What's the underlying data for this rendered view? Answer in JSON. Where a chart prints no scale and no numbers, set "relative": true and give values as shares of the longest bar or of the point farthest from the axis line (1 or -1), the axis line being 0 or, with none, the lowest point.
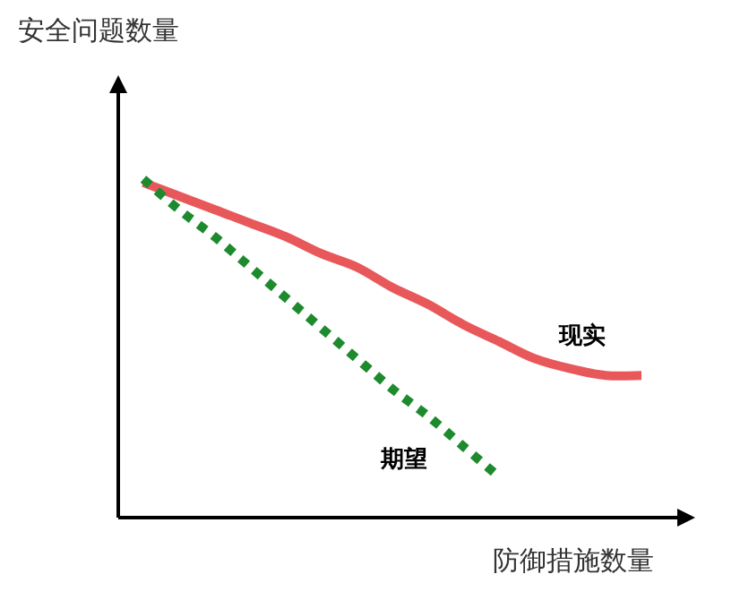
{
  "chart_data": {
    "type": "line",
    "relative": true,
    "xlabel": "防御措施数量",
    "ylabel": "安全问题数量",
    "categories": [
      null,
      null,
      null,
      null,
      null,
      null,
      null,
      null,
      null,
      null,
      null,
      null,
      null,
      null,
      null
    ],
    "series": [
      {
        "name": "现实",
        "color": "#e8585a",
        "line_style": "solid",
        "values": [
          0.99,
          0.95,
          0.91,
          0.87,
          0.83,
          0.78,
          0.74,
          0.68,
          0.63,
          0.57,
          0.52,
          0.47,
          0.44,
          0.42,
          0.42
        ]
      },
      {
        "name": "期望",
        "color": "#1e8a2e",
        "line_style": "dotted",
        "values": [
          1.0,
          0.91,
          0.83,
          0.74,
          0.65,
          0.56,
          0.47,
          0.38,
          0.3,
          0.21,
          0.12,
          null,
          null,
          null,
          null
        ]
      }
    ]
  }
}
